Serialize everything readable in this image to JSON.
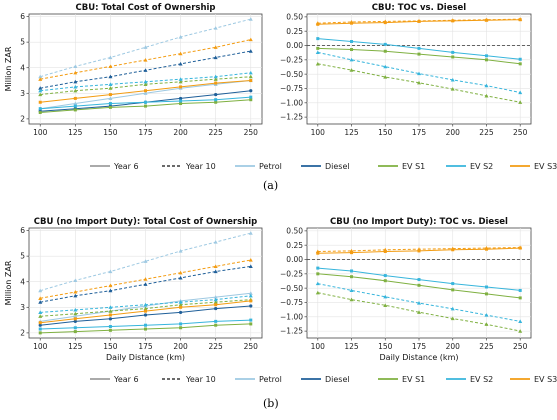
{
  "legend": [
    {
      "label": "Year 6",
      "color": "#9e9e9e",
      "style": "solid"
    },
    {
      "label": "Year 10",
      "color": "#555555",
      "style": "dashed"
    },
    {
      "label": "Petrol",
      "color": "#9ec9e2",
      "style": "solid"
    },
    {
      "label": "Diesel",
      "color": "#1f5f99",
      "style": "solid"
    },
    {
      "label": "EV S1",
      "color": "#7fb041",
      "style": "solid"
    },
    {
      "label": "EV S2",
      "color": "#37b5dc",
      "style": "solid"
    },
    {
      "label": "EV S3",
      "color": "#f39c12",
      "style": "solid"
    }
  ],
  "captions": {
    "a": "(a)",
    "b": "(b)"
  },
  "chart_data": [
    {
      "type": "line",
      "title": "CBU: Total Cost of Ownership",
      "xlabel": "",
      "ylabel": "Million ZAR",
      "x": [
        100,
        125,
        150,
        175,
        200,
        225,
        250
      ],
      "xticks": [
        100,
        125,
        150,
        175,
        200,
        225,
        250
      ],
      "xlim": [
        92,
        258
      ],
      "ylim": [
        1.8,
        6.1
      ],
      "yticks": [
        2,
        3,
        4,
        5,
        6
      ],
      "grid": true,
      "series": [
        {
          "name": "Petrol",
          "year": "Year 6",
          "color": "#9ec9e2",
          "marker": "^",
          "dash": "solid",
          "values": [
            2.4,
            2.6,
            2.8,
            3.0,
            3.2,
            3.35,
            3.5
          ]
        },
        {
          "name": "Petrol",
          "year": "Year 10",
          "color": "#9ec9e2",
          "marker": "^",
          "dash": "dashed",
          "values": [
            3.65,
            4.05,
            4.4,
            4.8,
            5.2,
            5.55,
            5.9
          ]
        },
        {
          "name": "Diesel",
          "year": "Year 6",
          "color": "#1f5f99",
          "marker": "o",
          "dash": "solid",
          "values": [
            2.3,
            2.4,
            2.5,
            2.65,
            2.8,
            2.95,
            3.1
          ]
        },
        {
          "name": "Diesel",
          "year": "Year 10",
          "color": "#1f5f99",
          "marker": "^",
          "dash": "dashed",
          "values": [
            3.2,
            3.45,
            3.65,
            3.9,
            4.15,
            4.4,
            4.65
          ]
        },
        {
          "name": "EV S1",
          "year": "Year 6",
          "color": "#7fb041",
          "marker": "s",
          "dash": "solid",
          "values": [
            2.25,
            2.35,
            2.45,
            2.5,
            2.6,
            2.65,
            2.75
          ]
        },
        {
          "name": "EV S1",
          "year": "Year 10",
          "color": "#7fb041",
          "marker": "^",
          "dash": "dashed",
          "values": [
            2.95,
            3.1,
            3.2,
            3.35,
            3.45,
            3.55,
            3.65
          ]
        },
        {
          "name": "EV S2",
          "year": "Year 6",
          "color": "#37b5dc",
          "marker": "s",
          "dash": "solid",
          "values": [
            2.4,
            2.5,
            2.6,
            2.65,
            2.7,
            2.75,
            2.85
          ]
        },
        {
          "name": "EV S2",
          "year": "Year 10",
          "color": "#37b5dc",
          "marker": "^",
          "dash": "dashed",
          "values": [
            3.1,
            3.25,
            3.35,
            3.45,
            3.55,
            3.65,
            3.8
          ]
        },
        {
          "name": "EV S3",
          "year": "Year 6",
          "color": "#f39c12",
          "marker": "s",
          "dash": "solid",
          "values": [
            2.65,
            2.8,
            2.95,
            3.1,
            3.25,
            3.4,
            3.5
          ]
        },
        {
          "name": "EV S3",
          "year": "Year 10",
          "color": "#f39c12",
          "marker": "^",
          "dash": "dashed",
          "values": [
            3.55,
            3.8,
            4.05,
            4.3,
            4.55,
            4.8,
            5.1
          ]
        }
      ]
    },
    {
      "type": "line",
      "title": "CBU: TOC vs. Diesel",
      "xlabel": "",
      "ylabel": "",
      "x": [
        100,
        125,
        150,
        175,
        200,
        225,
        250
      ],
      "xticks": [
        100,
        125,
        150,
        175,
        200,
        225,
        250
      ],
      "xlim": [
        92,
        258
      ],
      "ylim": [
        -1.37,
        0.55
      ],
      "yticks": [
        0.5,
        0.25,
        0.0,
        -0.25,
        -0.5,
        -0.75,
        -1.0,
        -1.25
      ],
      "ytick_labels": [
        "0.50",
        "0.25",
        "0.00",
        "−0.25",
        "−0.50",
        "−0.75",
        "−1.00",
        "−1.25"
      ],
      "grid": true,
      "zero_line": true,
      "series": [
        {
          "name": "EV S1",
          "year": "Year 6",
          "color": "#7fb041",
          "marker": "s",
          "dash": "solid",
          "values": [
            -0.05,
            -0.07,
            -0.1,
            -0.15,
            -0.2,
            -0.25,
            -0.32
          ]
        },
        {
          "name": "EV S1",
          "year": "Year 10",
          "color": "#7fb041",
          "marker": "^",
          "dash": "dashed",
          "values": [
            -0.32,
            -0.43,
            -0.55,
            -0.65,
            -0.76,
            -0.88,
            -0.99
          ]
        },
        {
          "name": "EV S2",
          "year": "Year 6",
          "color": "#37b5dc",
          "marker": "s",
          "dash": "solid",
          "values": [
            0.12,
            0.07,
            0.02,
            -0.05,
            -0.12,
            -0.18,
            -0.24
          ]
        },
        {
          "name": "EV S2",
          "year": "Year 10",
          "color": "#37b5dc",
          "marker": "^",
          "dash": "dashed",
          "values": [
            -0.12,
            -0.25,
            -0.37,
            -0.49,
            -0.6,
            -0.7,
            -0.82
          ]
        },
        {
          "name": "EV S3",
          "year": "Year 6",
          "color": "#f39c12",
          "marker": "s",
          "dash": "solid",
          "values": [
            0.37,
            0.39,
            0.4,
            0.42,
            0.43,
            0.44,
            0.45
          ]
        },
        {
          "name": "EV S3",
          "year": "Year 10",
          "color": "#f39c12",
          "marker": "^",
          "dash": "dashed",
          "values": [
            0.39,
            0.41,
            0.42,
            0.43,
            0.44,
            0.45,
            0.46
          ]
        }
      ]
    },
    {
      "type": "line",
      "title": "CBU (no Import Duty): Total Cost of Ownership",
      "xlabel": "Daily Distance (km)",
      "ylabel": "Million ZAR",
      "x": [
        100,
        125,
        150,
        175,
        200,
        225,
        250
      ],
      "xticks": [
        100,
        125,
        150,
        175,
        200,
        225,
        250
      ],
      "xlim": [
        92,
        258
      ],
      "ylim": [
        1.8,
        6.1
      ],
      "yticks": [
        2,
        3,
        4,
        5,
        6
      ],
      "grid": true,
      "series": [
        {
          "name": "Petrol",
          "year": "Year 6",
          "color": "#9ec9e2",
          "marker": "^",
          "dash": "solid",
          "values": [
            2.45,
            2.65,
            2.85,
            3.05,
            3.25,
            3.4,
            3.55
          ]
        },
        {
          "name": "Petrol",
          "year": "Year 10",
          "color": "#9ec9e2",
          "marker": "^",
          "dash": "dashed",
          "values": [
            3.65,
            4.05,
            4.4,
            4.8,
            5.2,
            5.55,
            5.9
          ]
        },
        {
          "name": "Diesel",
          "year": "Year 6",
          "color": "#1f5f99",
          "marker": "o",
          "dash": "solid",
          "values": [
            2.3,
            2.45,
            2.55,
            2.7,
            2.8,
            2.95,
            3.05
          ]
        },
        {
          "name": "Diesel",
          "year": "Year 10",
          "color": "#1f5f99",
          "marker": "^",
          "dash": "dashed",
          "values": [
            3.2,
            3.45,
            3.65,
            3.9,
            4.15,
            4.4,
            4.6
          ]
        },
        {
          "name": "EV S1",
          "year": "Year 6",
          "color": "#7fb041",
          "marker": "s",
          "dash": "solid",
          "values": [
            2.0,
            2.05,
            2.1,
            2.15,
            2.2,
            2.3,
            2.35
          ]
        },
        {
          "name": "EV S1",
          "year": "Year 10",
          "color": "#7fb041",
          "marker": "^",
          "dash": "dashed",
          "values": [
            2.65,
            2.75,
            2.85,
            2.95,
            3.1,
            3.2,
            3.3
          ]
        },
        {
          "name": "EV S2",
          "year": "Year 6",
          "color": "#37b5dc",
          "marker": "s",
          "dash": "solid",
          "values": [
            2.15,
            2.2,
            2.25,
            2.3,
            2.35,
            2.45,
            2.5
          ]
        },
        {
          "name": "EV S2",
          "year": "Year 10",
          "color": "#37b5dc",
          "marker": "^",
          "dash": "dashed",
          "values": [
            2.8,
            2.9,
            3.0,
            3.1,
            3.2,
            3.3,
            3.45
          ]
        },
        {
          "name": "EV S3",
          "year": "Year 6",
          "color": "#f39c12",
          "marker": "s",
          "dash": "solid",
          "values": [
            2.4,
            2.55,
            2.7,
            2.85,
            3.0,
            3.1,
            3.25
          ]
        },
        {
          "name": "EV S3",
          "year": "Year 10",
          "color": "#f39c12",
          "marker": "^",
          "dash": "dashed",
          "values": [
            3.35,
            3.6,
            3.85,
            4.1,
            4.35,
            4.6,
            4.85
          ]
        }
      ]
    },
    {
      "type": "line",
      "title": "CBU (no Import Duty): TOC vs. Diesel",
      "xlabel": "Daily Distance (km)",
      "ylabel": "",
      "x": [
        100,
        125,
        150,
        175,
        200,
        225,
        250
      ],
      "xticks": [
        100,
        125,
        150,
        175,
        200,
        225,
        250
      ],
      "xlim": [
        92,
        258
      ],
      "ylim": [
        -1.37,
        0.55
      ],
      "yticks": [
        0.5,
        0.25,
        0.0,
        -0.25,
        -0.5,
        -0.75,
        -1.0,
        -1.25
      ],
      "ytick_labels": [
        "0.50",
        "0.25",
        "0.00",
        "−0.25",
        "−0.50",
        "−0.75",
        "−1.00",
        "−1.25"
      ],
      "grid": true,
      "zero_line": true,
      "series": [
        {
          "name": "EV S1",
          "year": "Year 6",
          "color": "#7fb041",
          "marker": "s",
          "dash": "solid",
          "values": [
            -0.25,
            -0.3,
            -0.37,
            -0.45,
            -0.53,
            -0.6,
            -0.67
          ]
        },
        {
          "name": "EV S1",
          "year": "Year 10",
          "color": "#7fb041",
          "marker": "^",
          "dash": "dashed",
          "values": [
            -0.58,
            -0.7,
            -0.8,
            -0.92,
            -1.03,
            -1.13,
            -1.25
          ]
        },
        {
          "name": "EV S2",
          "year": "Year 6",
          "color": "#37b5dc",
          "marker": "s",
          "dash": "solid",
          "values": [
            -0.15,
            -0.2,
            -0.28,
            -0.35,
            -0.42,
            -0.48,
            -0.54
          ]
        },
        {
          "name": "EV S2",
          "year": "Year 10",
          "color": "#37b5dc",
          "marker": "^",
          "dash": "dashed",
          "values": [
            -0.42,
            -0.54,
            -0.65,
            -0.76,
            -0.86,
            -0.97,
            -1.08
          ]
        },
        {
          "name": "EV S3",
          "year": "Year 6",
          "color": "#f39c12",
          "marker": "s",
          "dash": "solid",
          "values": [
            0.11,
            0.12,
            0.14,
            0.15,
            0.17,
            0.18,
            0.2
          ]
        },
        {
          "name": "EV S3",
          "year": "Year 10",
          "color": "#f39c12",
          "marker": "^",
          "dash": "dashed",
          "values": [
            0.14,
            0.15,
            0.17,
            0.18,
            0.19,
            0.2,
            0.21
          ]
        }
      ]
    }
  ]
}
